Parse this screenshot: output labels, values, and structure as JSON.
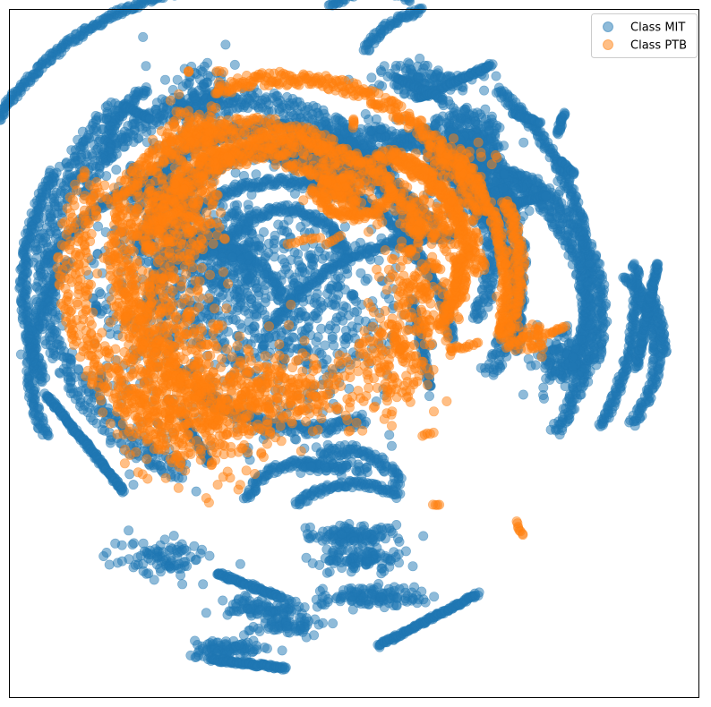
{
  "chart_data": {
    "type": "scatter",
    "title": "",
    "xlabel": "",
    "ylabel": "",
    "xticks": false,
    "yticks": false,
    "grid": false,
    "legend_position": "top-right",
    "xlim": [
      0,
      100
    ],
    "ylim": [
      0,
      100
    ],
    "series": [
      {
        "name": "Class MIT",
        "color": "#1f77b4",
        "opacity": 0.5,
        "arcs": [
          {
            "cx": 35,
            "cy": 40,
            "r": 44,
            "a0": 78,
            "a1": 148,
            "w": 0.5
          },
          {
            "cx": 63,
            "cy": 64,
            "r": 31,
            "a0": 87,
            "a1": 145,
            "w": 0.5
          },
          {
            "cx": 50,
            "cy": 82,
            "r": 13,
            "a0": 60,
            "a1": 130,
            "w": 0.5
          },
          {
            "cx": 42,
            "cy": 74,
            "r": 8,
            "a0": 70,
            "a1": 160,
            "w": 0.6
          },
          {
            "cx": 49,
            "cy": 72,
            "r": 8,
            "a0": 20,
            "a1": 120,
            "w": 0.8
          },
          {
            "cx": 47,
            "cy": 40,
            "r": 37,
            "a0": -20,
            "a1": 50,
            "w": 0.6
          },
          {
            "cx": 47,
            "cy": 45,
            "r": 27,
            "a0": -10,
            "a1": 55,
            "w": 0.5
          },
          {
            "cx": 47,
            "cy": 48,
            "r": 17,
            "a0": 0,
            "a1": 60,
            "w": 0.5
          },
          {
            "cx": 47,
            "cy": 40,
            "r": 44,
            "a0": -28,
            "a1": 4,
            "w": 0.5
          },
          {
            "cx": 27,
            "cy": 52,
            "r": 24,
            "a0": 140,
            "a1": 205,
            "w": 0.6
          },
          {
            "cx": 33,
            "cy": 40,
            "r": 27,
            "a0": 40,
            "a1": 150,
            "w": 1.4
          },
          {
            "cx": 38,
            "cy": 40,
            "r": 23,
            "a0": 20,
            "a1": 150,
            "w": 1.0
          },
          {
            "cx": 40,
            "cy": 40,
            "r": 20,
            "a0": 20,
            "a1": 145,
            "w": 1.0
          },
          {
            "cx": 36,
            "cy": 38,
            "r": 17,
            "a0": 40,
            "a1": 170,
            "w": 0.9
          },
          {
            "cx": 36,
            "cy": 38,
            "r": 31,
            "a0": 130,
            "a1": 250,
            "w": 1.6
          },
          {
            "cx": 35,
            "cy": 40,
            "r": 33,
            "a0": 150,
            "a1": 205,
            "w": 0.6
          },
          {
            "cx": 40,
            "cy": 48,
            "r": 23,
            "a0": 30,
            "a1": 140,
            "w": 0.6
          },
          {
            "cx": 28,
            "cy": 50,
            "r": 26,
            "a0": 100,
            "a1": 150,
            "w": 0.5
          },
          {
            "cx": 42,
            "cy": 48,
            "r": 26,
            "a0": 40,
            "a1": 95,
            "w": 0.5
          },
          {
            "cx": 48,
            "cy": 38,
            "r": 26,
            "a0": -35,
            "a1": 50,
            "w": 1.2
          },
          {
            "cx": 52,
            "cy": 36,
            "r": 18,
            "a0": -30,
            "a1": 90,
            "w": 1.0
          },
          {
            "cx": 64,
            "cy": 44,
            "r": 22,
            "a0": -20,
            "a1": 70,
            "w": 0.8
          },
          {
            "cx": 57,
            "cy": 46,
            "r": 27,
            "a0": -35,
            "a1": 60,
            "w": 0.8
          },
          {
            "cx": 66,
            "cy": 20,
            "r": 4,
            "a0": 0,
            "a1": 360,
            "w": 1.6
          },
          {
            "cx": 30,
            "cy": 45,
            "r": 10,
            "a0": 20,
            "a1": 170,
            "w": 0.7
          },
          {
            "cx": 28,
            "cy": 40,
            "r": 7,
            "a0": 0,
            "a1": 160,
            "w": 0.7
          },
          {
            "cx": 40,
            "cy": 38,
            "r": 9,
            "a0": 10,
            "a1": 150,
            "w": 0.6
          },
          {
            "cx": 46,
            "cy": 30,
            "r": 5,
            "a0": 20,
            "a1": 120,
            "w": 0.6
          },
          {
            "cx": 43,
            "cy": 36,
            "r": 25,
            "a0": 230,
            "a1": 290,
            "w": 0.8
          },
          {
            "cx": 53,
            "cy": 6,
            "r": 9,
            "a0": 55,
            "a1": 135,
            "w": 0.5
          },
          {
            "cx": 62,
            "cy": 24,
            "r": 7,
            "a0": 100,
            "a1": 150,
            "w": 0.5
          },
          {
            "cx": 26,
            "cy": 22,
            "r": 12,
            "a0": 120,
            "a1": 180,
            "w": 0.6
          },
          {
            "cx": 25,
            "cy": 20,
            "r": 8,
            "a0": 200,
            "a1": 280,
            "w": 0.6
          },
          {
            "cx": 62,
            "cy": 12,
            "r": 12,
            "a0": 100,
            "a1": 150,
            "w": 0.5
          },
          {
            "cx": 78,
            "cy": 50,
            "r": 16,
            "a0": -40,
            "a1": 45,
            "w": 0.6
          },
          {
            "cx": 75,
            "cy": 50,
            "r": 20,
            "a0": 0,
            "a1": 25,
            "w": 0.4
          }
        ],
        "clusters": [
          {
            "x": 50,
            "y": 76.5,
            "sx": 3.2,
            "sy": 0.8,
            "n": 120
          },
          {
            "x": 51,
            "y": 80,
            "sx": 3.0,
            "sy": 0.7,
            "n": 100
          },
          {
            "x": 37,
            "y": 87,
            "sx": 3.2,
            "sy": 0.7,
            "n": 90
          },
          {
            "x": 32,
            "y": 93,
            "sx": 3.0,
            "sy": 0.8,
            "n": 90
          },
          {
            "x": 40,
            "y": 89.5,
            "sx": 3.0,
            "sy": 0.6,
            "n": 70
          },
          {
            "x": 47,
            "y": 66.5,
            "sx": 2.6,
            "sy": 0.5,
            "n": 60
          },
          {
            "x": 22,
            "y": 79.5,
            "sx": 3.0,
            "sy": 1.4,
            "n": 90
          },
          {
            "x": 53,
            "y": 85.5,
            "sx": 4.2,
            "sy": 0.7,
            "n": 120
          },
          {
            "x": 66,
            "y": 21,
            "sx": 2.6,
            "sy": 3.0,
            "n": 400
          },
          {
            "x": 71,
            "y": 27,
            "sx": 3.2,
            "sy": 1.8,
            "n": 180
          },
          {
            "x": 49,
            "y": 21,
            "sx": 3.6,
            "sy": 2.2,
            "n": 260
          },
          {
            "x": 60,
            "y": 10,
            "sx": 3.8,
            "sy": 1.0,
            "n": 110
          },
          {
            "x": 80,
            "y": 51,
            "sx": 2.0,
            "sy": 2.0,
            "n": 150
          },
          {
            "x": 40,
            "y": 44,
            "sx": 8,
            "sy": 8,
            "n": 600
          },
          {
            "x": 22,
            "y": 40,
            "sx": 5,
            "sy": 12,
            "n": 400
          },
          {
            "x": 30,
            "y": 36,
            "sx": 4,
            "sy": 4,
            "n": 200
          },
          {
            "x": 28,
            "y": 13,
            "sx": 2.5,
            "sy": 2.5,
            "n": 120
          }
        ],
        "strokes": [
          {
            "x0": 5.3,
            "y0": 56,
            "x1": 16.5,
            "y1": 70,
            "w": 0.5,
            "n": 180
          },
          {
            "x0": 29,
            "y0": 94.5,
            "x1": 40,
            "y1": 95.8,
            "w": 0.5,
            "n": 110
          },
          {
            "x0": 53.5,
            "y0": 92.5,
            "x1": 68,
            "y1": 85,
            "w": 0.5,
            "n": 140
          },
          {
            "x0": 30,
            "y0": 82,
            "x1": 39.5,
            "y1": 85.5,
            "w": 0.6,
            "n": 100
          },
          {
            "x0": 25.5,
            "y0": 60,
            "x1": 29,
            "y1": 66,
            "w": 0.6,
            "n": 60
          },
          {
            "x0": 91,
            "y0": 52,
            "x1": 94,
            "y1": 37,
            "w": 0.6,
            "n": 120
          },
          {
            "x0": 59,
            "y0": 13,
            "x1": 70,
            "y1": 8,
            "w": 0.5,
            "n": 100
          },
          {
            "x0": 56,
            "y0": 10,
            "x1": 63,
            "y1": 13,
            "w": 0.5,
            "n": 60
          },
          {
            "x0": 72,
            "y0": 28.5,
            "x1": 78,
            "y1": 27,
            "w": 0.4,
            "n": 50
          },
          {
            "x0": 79.5,
            "y0": 18,
            "x1": 80.5,
            "y1": 15,
            "w": 0.5,
            "n": 25
          },
          {
            "x0": 16.5,
            "y0": 14,
            "x1": 20.5,
            "y1": 16,
            "w": 0.4,
            "n": 40
          },
          {
            "x0": 12.8,
            "y0": 55,
            "x1": 13.3,
            "y1": 53,
            "w": 0.4,
            "n": 12
          },
          {
            "x0": 12.5,
            "y0": 44,
            "x1": 12.6,
            "y1": 43,
            "w": 0.4,
            "n": 8
          },
          {
            "x0": 61,
            "y0": 55,
            "x1": 58.5,
            "y1": 42,
            "w": 0.6,
            "n": 70
          },
          {
            "x0": 47.5,
            "y0": 35,
            "x1": 47,
            "y1": 32,
            "w": 0.4,
            "n": 15
          },
          {
            "x0": 54,
            "y0": 26,
            "x1": 55.5,
            "y1": 20,
            "w": 0.5,
            "n": 30
          },
          {
            "x0": 73,
            "y0": 15,
            "x1": 77,
            "y1": 16.5,
            "w": 0.4,
            "n": 30
          },
          {
            "x0": 80,
            "y0": 22,
            "x1": 82,
            "y1": 24,
            "w": 0.4,
            "n": 20
          }
        ]
      },
      {
        "name": "Class PTB",
        "color": "#ff7f0e",
        "opacity": 0.5,
        "arcs": [
          {
            "cx": 36,
            "cy": 38,
            "r": 17,
            "a0": 30,
            "a1": 170,
            "w": 1.4
          },
          {
            "cx": 35,
            "cy": 40,
            "r": 23,
            "a0": 60,
            "a1": 150,
            "w": 1.4
          },
          {
            "cx": 40,
            "cy": 40,
            "r": 21,
            "a0": 20,
            "a1": 120,
            "w": 1.0
          },
          {
            "cx": 36,
            "cy": 38,
            "r": 27,
            "a0": 150,
            "a1": 240,
            "w": 2.4
          },
          {
            "cx": 38,
            "cy": 36,
            "r": 22,
            "a0": 160,
            "a1": 245,
            "w": 1.8
          },
          {
            "cx": 48,
            "cy": 40,
            "r": 20,
            "a0": 5,
            "a1": 75,
            "w": 1.2
          },
          {
            "cx": 50,
            "cy": 38,
            "r": 24,
            "a0": -25,
            "a1": 25,
            "w": 0.8
          },
          {
            "cx": 44,
            "cy": 40,
            "r": 28,
            "a0": -15,
            "a1": 40,
            "w": 0.6
          },
          {
            "cx": 40,
            "cy": 40,
            "r": 30,
            "a0": 20,
            "a1": 110,
            "w": 1.0
          },
          {
            "cx": 50,
            "cy": 36,
            "r": 16,
            "a0": -40,
            "a1": 70,
            "w": 0.7
          },
          {
            "cx": 43,
            "cy": 36,
            "r": 22,
            "a0": -20,
            "a1": 0,
            "w": 0.5
          },
          {
            "cx": 50,
            "cy": 24,
            "r": 6,
            "a0": 200,
            "a1": 340,
            "w": 0.7
          }
        ],
        "clusters": [
          {
            "x": 28,
            "y": 58,
            "sx": 5,
            "sy": 5,
            "n": 350
          },
          {
            "x": 22,
            "y": 46,
            "sx": 4,
            "sy": 9,
            "n": 450
          },
          {
            "x": 24,
            "y": 28,
            "sx": 3,
            "sy": 4,
            "n": 220
          },
          {
            "x": 40,
            "y": 56,
            "sx": 7,
            "sy": 3,
            "n": 260
          },
          {
            "x": 56,
            "y": 50,
            "sx": 3,
            "sy": 4,
            "n": 160
          },
          {
            "x": 60,
            "y": 40,
            "sx": 3,
            "sy": 5,
            "n": 160
          },
          {
            "x": 61,
            "y": 30,
            "sx": 3,
            "sy": 3,
            "n": 90
          },
          {
            "x": 48,
            "y": 25,
            "sx": 2.4,
            "sy": 1.8,
            "n": 110
          },
          {
            "x": 64,
            "y": 22,
            "sx": 3,
            "sy": 1.5,
            "n": 60
          },
          {
            "x": 29,
            "y": 20,
            "sx": 1.6,
            "sy": 3.0,
            "n": 100
          },
          {
            "x": 25,
            "y": 17,
            "sx": 1.4,
            "sy": 1.6,
            "n": 40
          },
          {
            "x": 76,
            "y": 47.5,
            "sx": 1.4,
            "sy": 1.2,
            "n": 40
          }
        ],
        "strokes": [
          {
            "x0": 73.5,
            "y0": 74.5,
            "x1": 74.5,
            "y1": 76.5,
            "w": 0.3,
            "n": 8
          },
          {
            "x0": 61.5,
            "y0": 72,
            "x1": 62.5,
            "y1": 72,
            "w": 0.3,
            "n": 4
          },
          {
            "x0": 72,
            "y0": 49,
            "x1": 75,
            "y1": 47.5,
            "w": 0.4,
            "n": 12
          },
          {
            "x0": 64,
            "y0": 49.5,
            "x1": 68,
            "y1": 48.5,
            "w": 0.4,
            "n": 12
          },
          {
            "x0": 78.5,
            "y0": 47,
            "x1": 80.5,
            "y1": 46,
            "w": 0.4,
            "n": 10
          },
          {
            "x0": 72,
            "y0": 37,
            "x1": 72,
            "y1": 37,
            "w": 0.2,
            "n": 3
          },
          {
            "x0": 60,
            "y0": 62,
            "x1": 61.5,
            "y1": 61.5,
            "w": 0.3,
            "n": 5
          },
          {
            "x0": 40.5,
            "y0": 34,
            "x1": 45,
            "y1": 33,
            "w": 0.4,
            "n": 10
          },
          {
            "x0": 50,
            "y0": 17,
            "x1": 50,
            "y1": 16,
            "w": 0.4,
            "n": 6
          },
          {
            "x0": 46,
            "y0": 34,
            "x1": 48,
            "y1": 33,
            "w": 0.3,
            "n": 6
          },
          {
            "x0": 26,
            "y0": 9,
            "x1": 26,
            "y1": 9,
            "w": 0.2,
            "n": 3
          },
          {
            "x0": 30,
            "y0": 9,
            "x1": 31,
            "y1": 9,
            "w": 0.2,
            "n": 3
          }
        ]
      }
    ]
  }
}
